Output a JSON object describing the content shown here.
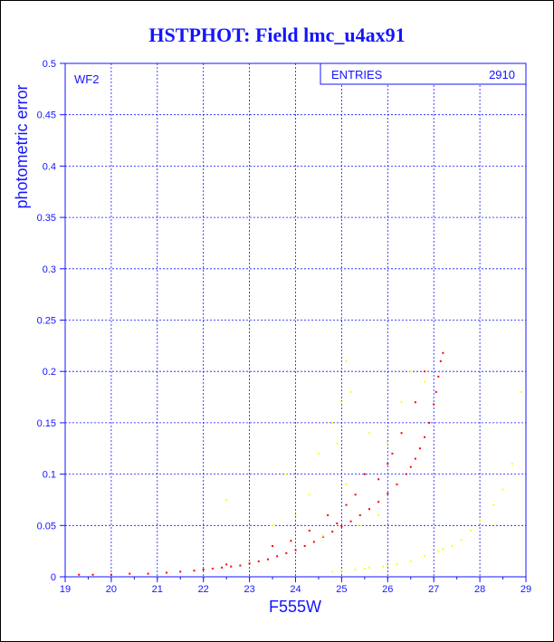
{
  "chart_data": {
    "type": "scatter",
    "title": "HSTPHOT: Field lmc_u4ax91",
    "xlabel": "F555W",
    "ylabel": "photometric error",
    "panel_label": "WF2",
    "stats_box": {
      "label": "ENTRIES",
      "value": "2910"
    },
    "xlim": [
      19,
      29
    ],
    "ylim": [
      0,
      0.5
    ],
    "x_ticks": [
      "19",
      "20",
      "21",
      "22",
      "23",
      "24",
      "25",
      "26",
      "27",
      "28",
      "29"
    ],
    "y_ticks": [
      "0",
      "0.05",
      "0.1",
      "0.15",
      "0.2",
      "0.25",
      "0.3",
      "0.35",
      "0.4",
      "0.45",
      "0.5"
    ],
    "grid": true,
    "series": [
      {
        "color": "#ff0000",
        "points": [
          [
            19.3,
            0.002
          ],
          [
            19.6,
            0.002
          ],
          [
            20.0,
            0.002
          ],
          [
            20.4,
            0.003
          ],
          [
            20.8,
            0.003
          ],
          [
            21.2,
            0.004
          ],
          [
            21.5,
            0.005
          ],
          [
            21.8,
            0.006
          ],
          [
            22.0,
            0.007
          ],
          [
            22.2,
            0.008
          ],
          [
            22.4,
            0.009
          ],
          [
            22.6,
            0.01
          ],
          [
            22.8,
            0.011
          ],
          [
            23.0,
            0.013
          ],
          [
            23.2,
            0.015
          ],
          [
            23.4,
            0.017
          ],
          [
            23.6,
            0.02
          ],
          [
            23.8,
            0.023
          ],
          [
            24.0,
            0.026
          ],
          [
            24.2,
            0.03
          ],
          [
            24.4,
            0.034
          ],
          [
            24.6,
            0.039
          ],
          [
            24.8,
            0.044
          ],
          [
            25.0,
            0.049
          ],
          [
            25.2,
            0.054
          ],
          [
            25.4,
            0.06
          ],
          [
            25.6,
            0.066
          ],
          [
            25.8,
            0.073
          ],
          [
            26.0,
            0.081
          ],
          [
            26.2,
            0.09
          ],
          [
            26.4,
            0.1
          ],
          [
            26.5,
            0.107
          ],
          [
            26.6,
            0.115
          ],
          [
            26.7,
            0.125
          ],
          [
            26.8,
            0.136
          ],
          [
            26.9,
            0.15
          ],
          [
            27.0,
            0.168
          ],
          [
            27.05,
            0.18
          ],
          [
            27.1,
            0.195
          ],
          [
            27.15,
            0.21
          ],
          [
            27.2,
            0.218
          ],
          [
            23.5,
            0.03
          ],
          [
            24.3,
            0.045
          ],
          [
            24.7,
            0.06
          ],
          [
            25.3,
            0.08
          ],
          [
            25.8,
            0.095
          ],
          [
            26.1,
            0.12
          ],
          [
            26.3,
            0.14
          ],
          [
            26.6,
            0.17
          ],
          [
            26.8,
            0.2
          ],
          [
            25.5,
            0.1
          ],
          [
            26.0,
            0.11
          ],
          [
            24.9,
            0.052
          ],
          [
            25.1,
            0.07
          ],
          [
            22.5,
            0.012
          ],
          [
            23.9,
            0.035
          ]
        ]
      },
      {
        "color": "#ffff00",
        "points": [
          [
            24.8,
            0.005
          ],
          [
            25.0,
            0.006
          ],
          [
            25.3,
            0.007
          ],
          [
            25.6,
            0.009
          ],
          [
            25.9,
            0.01
          ],
          [
            26.2,
            0.012
          ],
          [
            26.5,
            0.015
          ],
          [
            26.8,
            0.02
          ],
          [
            27.1,
            0.025
          ],
          [
            27.4,
            0.03
          ],
          [
            27.6,
            0.036
          ],
          [
            27.8,
            0.045
          ],
          [
            28.0,
            0.055
          ],
          [
            27.2,
            0.027
          ],
          [
            26.0,
            0.011
          ],
          [
            25.5,
            0.008
          ],
          [
            22.5,
            0.075
          ],
          [
            23.8,
            0.1
          ],
          [
            24.5,
            0.12
          ],
          [
            24.8,
            0.15
          ],
          [
            25.0,
            0.17
          ],
          [
            25.2,
            0.18
          ],
          [
            25.6,
            0.14
          ],
          [
            26.0,
            0.13
          ],
          [
            26.3,
            0.17
          ],
          [
            26.5,
            0.2
          ],
          [
            26.8,
            0.19
          ],
          [
            24.0,
            0.06
          ],
          [
            24.3,
            0.08
          ],
          [
            25.1,
            0.09
          ],
          [
            25.4,
            0.05
          ],
          [
            28.3,
            0.07
          ],
          [
            28.5,
            0.085
          ],
          [
            28.7,
            0.11
          ],
          [
            28.9,
            0.18
          ],
          [
            25.1,
            0.21
          ],
          [
            24.6,
            0.04
          ],
          [
            23.5,
            0.05
          ],
          [
            24.9,
            0.13
          ],
          [
            25.8,
            0.06
          ]
        ]
      }
    ]
  }
}
